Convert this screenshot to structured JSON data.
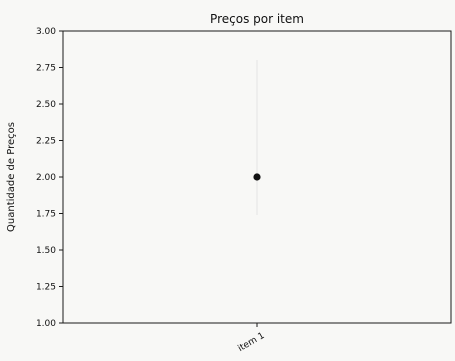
{
  "chart_data": {
    "type": "scatter",
    "title": "Preços por item",
    "xlabel": "",
    "ylabel": "Quantidade de Preços",
    "categories": [
      "item 1"
    ],
    "series": [
      {
        "values": [
          2.0
        ],
        "color": "#111111"
      }
    ],
    "ylim": [
      1.0,
      3.0
    ],
    "yticks": [
      "1.00",
      "1.25",
      "1.50",
      "1.75",
      "2.00",
      "2.25",
      "2.50",
      "2.75",
      "3.00"
    ],
    "grid": false,
    "legend": "none"
  }
}
